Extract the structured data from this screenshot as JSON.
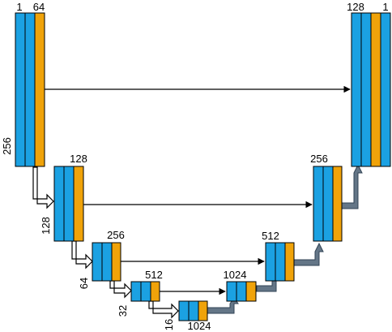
{
  "colors": {
    "blue": "#1ba1e2",
    "orange": "#f0a30a",
    "stroke": "#000000",
    "up_arrow": "#647687",
    "up_arrow_stroke": "#314354"
  },
  "labels": {
    "enc1_channels_a": "1",
    "enc1_channels_b": "64",
    "enc1_size": "256",
    "enc2_channels": "128",
    "enc2_size": "128",
    "enc3_channels": "256",
    "enc3_size": "64",
    "enc4_channels": "512",
    "enc4_size": "32",
    "bottleneck_channels": "1024",
    "bottleneck_size": "16",
    "dec4_channels": "1024",
    "dec3_channels": "512",
    "dec2_channels": "256",
    "out_channels_a": "128",
    "out_channels_b": "1"
  }
}
